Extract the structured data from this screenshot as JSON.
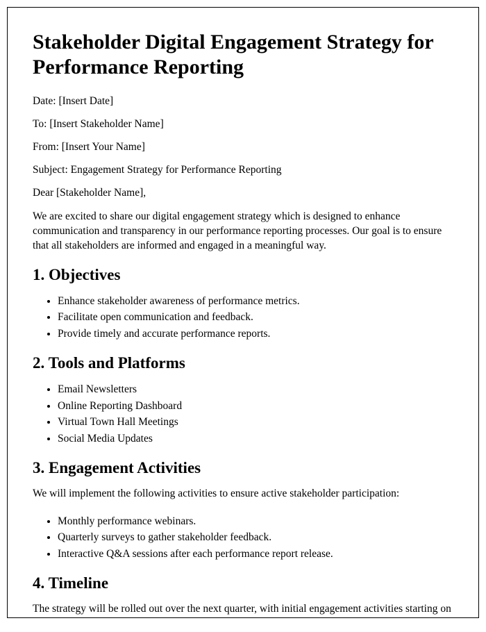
{
  "title": "Stakeholder Digital Engagement Strategy for Performance Reporting",
  "meta": {
    "date": "Date: [Insert Date]",
    "to": "To: [Insert Stakeholder Name]",
    "from": "From: [Insert Your Name]",
    "subject": "Subject: Engagement Strategy for Performance Reporting"
  },
  "salutation": "Dear [Stakeholder Name],",
  "intro": "We are excited to share our digital engagement strategy which is designed to enhance communication and transparency in our performance reporting processes. Our goal is to ensure that all stakeholders are informed and engaged in a meaningful way.",
  "sections": {
    "s1": {
      "heading": "1. Objectives",
      "items": [
        "Enhance stakeholder awareness of performance metrics.",
        "Facilitate open communication and feedback.",
        "Provide timely and accurate performance reports."
      ]
    },
    "s2": {
      "heading": "2. Tools and Platforms",
      "items": [
        "Email Newsletters",
        "Online Reporting Dashboard",
        "Virtual Town Hall Meetings",
        "Social Media Updates"
      ]
    },
    "s3": {
      "heading": "3. Engagement Activities",
      "intro": "We will implement the following activities to ensure active stakeholder participation:",
      "items": [
        "Monthly performance webinars.",
        "Quarterly surveys to gather stakeholder feedback.",
        "Interactive Q&A sessions after each performance report release."
      ]
    },
    "s4": {
      "heading": "4. Timeline",
      "intro": "The strategy will be rolled out over the next quarter, with initial engagement activities starting on [Insert Start Date]."
    }
  }
}
